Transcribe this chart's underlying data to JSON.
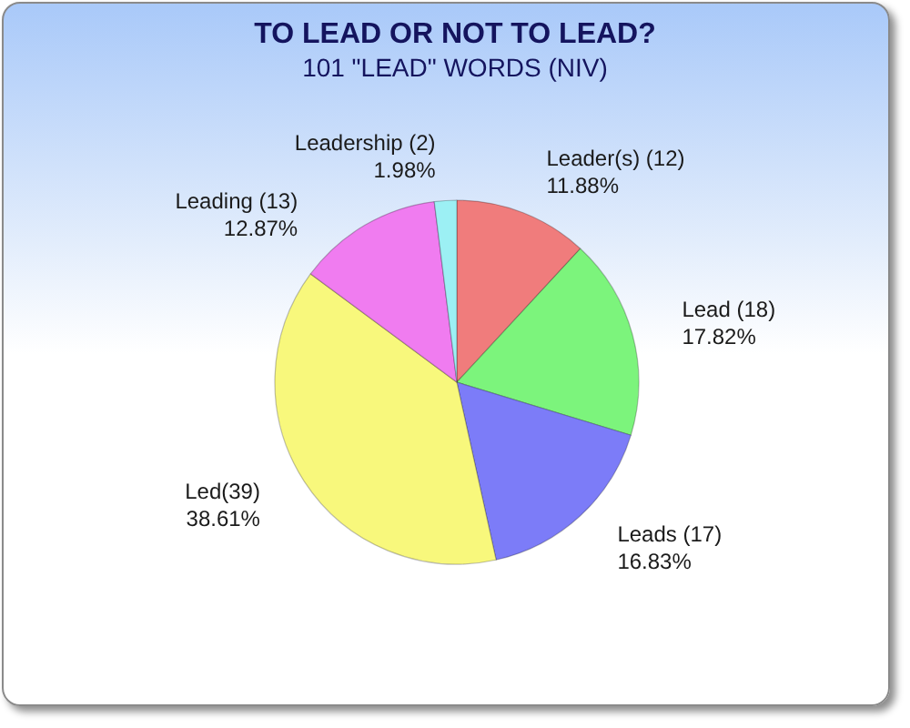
{
  "chart_data": {
    "type": "pie",
    "title": "TO LEAD OR NOT TO LEAD?",
    "subtitle": "101 \"LEAD\" WORDS (NIV)",
    "categories": [
      "Leader(s) (12)",
      "Lead (18)",
      "Leads (17)",
      "Led(39)",
      "Leading (13)",
      "Leadership (2)"
    ],
    "values": [
      11.88,
      17.82,
      16.83,
      38.61,
      12.87,
      1.98
    ],
    "colors": [
      "#f07c7c",
      "#7cf47c",
      "#7c7cf8",
      "#f8f87c",
      "#f07cf0",
      "#9cf0f4"
    ],
    "value_labels": [
      "11.88%",
      "17.82%",
      "16.83%",
      "38.61%",
      "12.87%",
      "1.98%"
    ]
  }
}
